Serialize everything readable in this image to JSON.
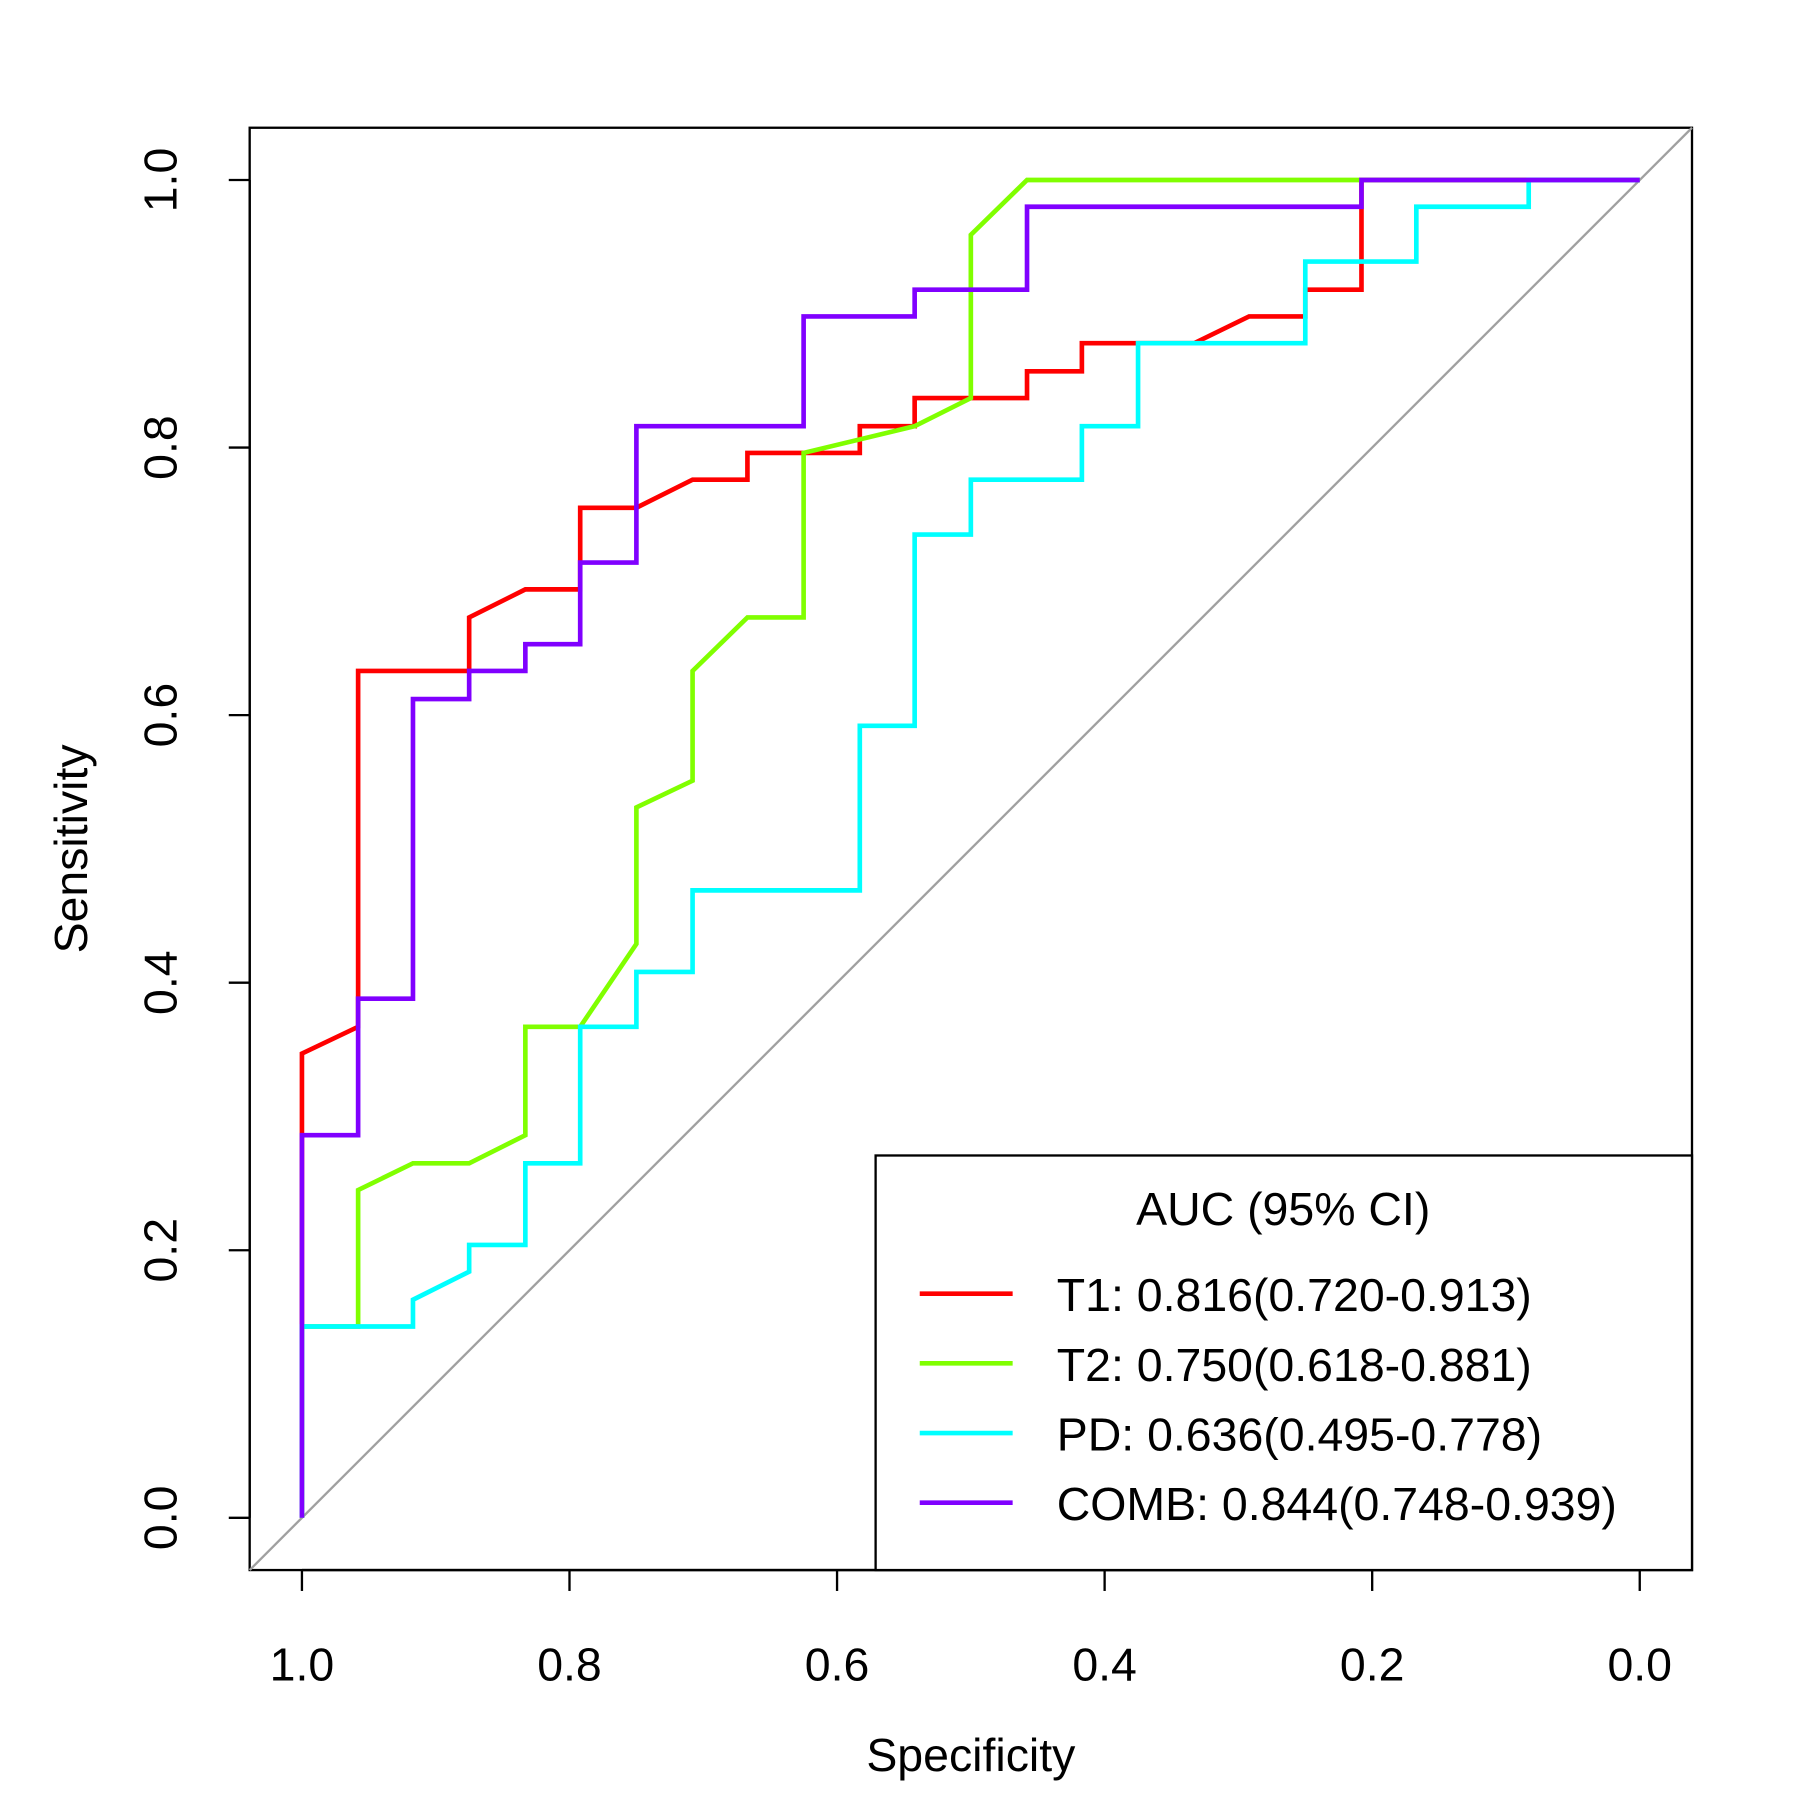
{
  "chart_data": {
    "type": "line",
    "xlabel": "Specificity",
    "ylabel": "Sensitivity",
    "xlim": [
      1.0,
      0.0
    ],
    "ylim": [
      0.0,
      1.0
    ],
    "x_ticks": [
      "1.0",
      "0.8",
      "0.6",
      "0.4",
      "0.2",
      "0.0"
    ],
    "y_ticks": [
      "0.0",
      "0.2",
      "0.4",
      "0.6",
      "0.8",
      "1.0"
    ],
    "reference_line": {
      "from": [
        1,
        0
      ],
      "to": [
        0,
        1
      ],
      "color": "#a0a0a0"
    },
    "legend": {
      "title": "AUC (95% CI)",
      "placement": "bottom-right"
    },
    "series": [
      {
        "name": "T1",
        "label": "T1: 0.816(0.720-0.913)",
        "color": "#ff0000",
        "points": [
          [
            1,
            0
          ],
          [
            1,
            0.347
          ],
          [
            0.958,
            0.367
          ],
          [
            0.958,
            0.633
          ],
          [
            0.875,
            0.633
          ],
          [
            0.875,
            0.673
          ],
          [
            0.833,
            0.694
          ],
          [
            0.792,
            0.694
          ],
          [
            0.792,
            0.755
          ],
          [
            0.75,
            0.755
          ],
          [
            0.708,
            0.776
          ],
          [
            0.667,
            0.776
          ],
          [
            0.667,
            0.796
          ],
          [
            0.583,
            0.796
          ],
          [
            0.583,
            0.816
          ],
          [
            0.542,
            0.816
          ],
          [
            0.542,
            0.837
          ],
          [
            0.458,
            0.837
          ],
          [
            0.458,
            0.857
          ],
          [
            0.417,
            0.857
          ],
          [
            0.417,
            0.878
          ],
          [
            0.333,
            0.878
          ],
          [
            0.292,
            0.898
          ],
          [
            0.25,
            0.898
          ],
          [
            0.25,
            0.918
          ],
          [
            0.208,
            0.918
          ],
          [
            0.208,
            0.939
          ],
          [
            0.208,
            1
          ],
          [
            0,
            1
          ]
        ]
      },
      {
        "name": "T2",
        "label": "T2: 0.750(0.618-0.881)",
        "color": "#80ff00",
        "points": [
          [
            1,
            0
          ],
          [
            1,
            0.143
          ],
          [
            0.958,
            0.143
          ],
          [
            0.958,
            0.245
          ],
          [
            0.917,
            0.265
          ],
          [
            0.875,
            0.265
          ],
          [
            0.833,
            0.286
          ],
          [
            0.833,
            0.367
          ],
          [
            0.792,
            0.367
          ],
          [
            0.75,
            0.429
          ],
          [
            0.75,
            0.531
          ],
          [
            0.708,
            0.551
          ],
          [
            0.708,
            0.633
          ],
          [
            0.667,
            0.673
          ],
          [
            0.625,
            0.673
          ],
          [
            0.625,
            0.796
          ],
          [
            0.542,
            0.816
          ],
          [
            0.5,
            0.837
          ],
          [
            0.5,
            0.959
          ],
          [
            0.458,
            1
          ],
          [
            0,
            1
          ]
        ]
      },
      {
        "name": "PD",
        "label": "PD: 0.636(0.495-0.778)",
        "color": "#00ffff",
        "points": [
          [
            1,
            0
          ],
          [
            1,
            0.143
          ],
          [
            0.917,
            0.143
          ],
          [
            0.917,
            0.163
          ],
          [
            0.875,
            0.184
          ],
          [
            0.875,
            0.204
          ],
          [
            0.833,
            0.204
          ],
          [
            0.833,
            0.265
          ],
          [
            0.792,
            0.265
          ],
          [
            0.792,
            0.367
          ],
          [
            0.75,
            0.367
          ],
          [
            0.75,
            0.408
          ],
          [
            0.708,
            0.408
          ],
          [
            0.708,
            0.469
          ],
          [
            0.583,
            0.469
          ],
          [
            0.583,
            0.592
          ],
          [
            0.542,
            0.592
          ],
          [
            0.542,
            0.735
          ],
          [
            0.5,
            0.735
          ],
          [
            0.5,
            0.776
          ],
          [
            0.417,
            0.776
          ],
          [
            0.417,
            0.816
          ],
          [
            0.375,
            0.816
          ],
          [
            0.375,
            0.878
          ],
          [
            0.25,
            0.878
          ],
          [
            0.25,
            0.939
          ],
          [
            0.167,
            0.939
          ],
          [
            0.167,
            0.98
          ],
          [
            0.083,
            0.98
          ],
          [
            0.083,
            1
          ],
          [
            0,
            1
          ]
        ]
      },
      {
        "name": "COMB",
        "label": "COMB: 0.844(0.748-0.939)",
        "color": "#8000ff",
        "points": [
          [
            1,
            0
          ],
          [
            1,
            0.286
          ],
          [
            0.958,
            0.286
          ],
          [
            0.958,
            0.388
          ],
          [
            0.917,
            0.388
          ],
          [
            0.917,
            0.612
          ],
          [
            0.875,
            0.612
          ],
          [
            0.875,
            0.633
          ],
          [
            0.833,
            0.633
          ],
          [
            0.833,
            0.653
          ],
          [
            0.792,
            0.653
          ],
          [
            0.792,
            0.714
          ],
          [
            0.75,
            0.714
          ],
          [
            0.75,
            0.816
          ],
          [
            0.625,
            0.816
          ],
          [
            0.625,
            0.898
          ],
          [
            0.542,
            0.898
          ],
          [
            0.542,
            0.918
          ],
          [
            0.458,
            0.918
          ],
          [
            0.458,
            0.98
          ],
          [
            0.208,
            0.98
          ],
          [
            0.208,
            1
          ],
          [
            0,
            1
          ]
        ]
      }
    ]
  }
}
